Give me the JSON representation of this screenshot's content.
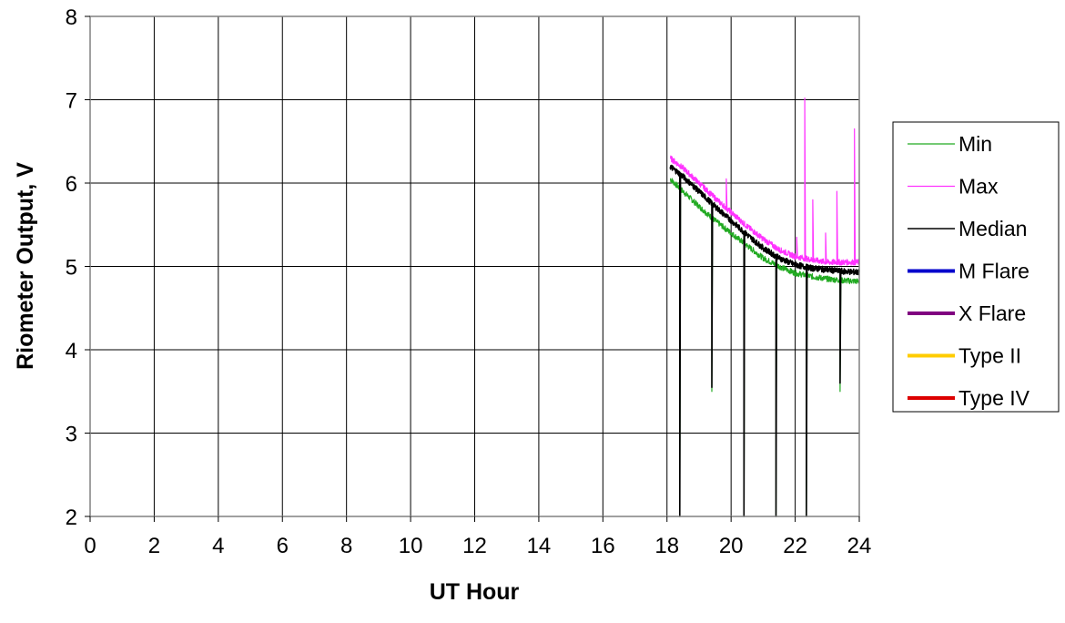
{
  "chart_data": {
    "type": "line",
    "title": "",
    "xlabel": "UT Hour",
    "ylabel": "Riometer Output, V",
    "xlim": [
      0,
      24
    ],
    "ylim": [
      2,
      8
    ],
    "xticks": [
      0,
      2,
      4,
      6,
      8,
      10,
      12,
      14,
      16,
      18,
      20,
      22,
      24
    ],
    "yticks": [
      2,
      3,
      4,
      5,
      6,
      7,
      8
    ],
    "grid": true,
    "legend_position": "right",
    "series": [
      {
        "name": "Min",
        "color": "#22aa22",
        "width": 1.2,
        "x": [
          18.1,
          18.5,
          19.0,
          19.5,
          20.0,
          20.5,
          21.0,
          21.5,
          22.0,
          22.5,
          23.0,
          23.5,
          24.0
        ],
        "y": [
          6.05,
          5.9,
          5.72,
          5.55,
          5.4,
          5.25,
          5.1,
          5.0,
          4.92,
          4.88,
          4.85,
          4.83,
          4.82
        ],
        "spikes": [
          [
            18.4,
            2.0
          ],
          [
            19.4,
            3.5
          ],
          [
            20.4,
            2.0
          ],
          [
            21.4,
            2.0
          ],
          [
            22.35,
            2.0
          ],
          [
            23.4,
            3.5
          ]
        ]
      },
      {
        "name": "Max",
        "color": "#ff33ff",
        "width": 1.2,
        "x": [
          18.1,
          18.5,
          19.0,
          19.5,
          20.0,
          20.5,
          21.0,
          21.5,
          22.0,
          22.5,
          23.0,
          23.5,
          24.0
        ],
        "y": [
          6.3,
          6.18,
          6.0,
          5.82,
          5.65,
          5.48,
          5.33,
          5.2,
          5.12,
          5.08,
          5.05,
          5.05,
          5.05
        ],
        "spikes": [
          [
            19.85,
            6.05
          ],
          [
            22.05,
            5.35
          ],
          [
            22.3,
            7.02
          ],
          [
            22.55,
            5.8
          ],
          [
            22.95,
            5.4
          ],
          [
            23.3,
            5.9
          ],
          [
            23.85,
            6.65
          ]
        ]
      },
      {
        "name": "Median",
        "color": "#000000",
        "width": 1.6,
        "x": [
          18.1,
          18.5,
          19.0,
          19.5,
          20.0,
          20.5,
          21.0,
          21.5,
          22.0,
          22.5,
          23.0,
          23.5,
          24.0
        ],
        "y": [
          6.2,
          6.08,
          5.9,
          5.72,
          5.55,
          5.38,
          5.22,
          5.1,
          5.02,
          4.98,
          4.96,
          4.94,
          4.93
        ],
        "spikes": [
          [
            18.4,
            2.0
          ],
          [
            19.4,
            3.55
          ],
          [
            20.4,
            2.0
          ],
          [
            21.4,
            2.0
          ],
          [
            22.35,
            2.0
          ],
          [
            23.4,
            3.6
          ]
        ]
      },
      {
        "name": "M Flare",
        "color": "#0000cc",
        "width": 4,
        "x": [],
        "y": []
      },
      {
        "name": "X Flare",
        "color": "#800080",
        "width": 4,
        "x": [],
        "y": []
      },
      {
        "name": "Type II",
        "color": "#ffcc00",
        "width": 4,
        "x": [],
        "y": []
      },
      {
        "name": "Type IV",
        "color": "#dd0000",
        "width": 4,
        "x": [],
        "y": []
      }
    ]
  }
}
